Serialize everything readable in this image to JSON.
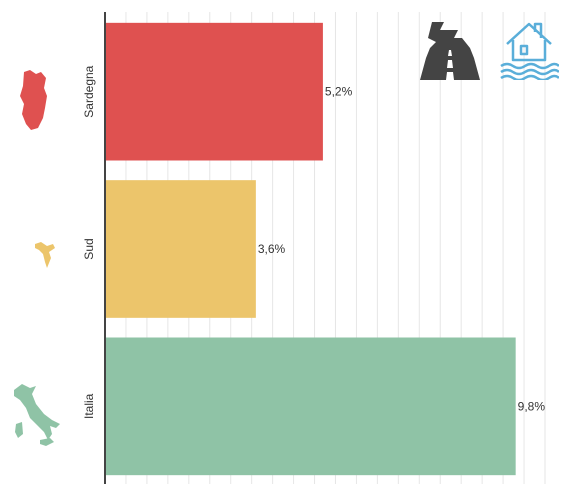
{
  "chart_data": {
    "type": "bar",
    "orientation": "horizontal",
    "categories": [
      "Sardegna",
      "Sud",
      "Italia"
    ],
    "values": [
      5.2,
      3.6,
      9.8
    ],
    "value_labels": [
      "5,2%",
      "3,6%",
      "9,8%"
    ],
    "colors": [
      "#df5150",
      "#ecc56b",
      "#8fc3a6"
    ],
    "xlim": [
      0,
      10.5
    ],
    "grid": true,
    "title": "",
    "xlabel": "",
    "ylabel": ""
  },
  "icons": {
    "region_icons": [
      "sardinia-map-icon",
      "south-italy-map-icon",
      "italy-map-icon"
    ],
    "header_icons": [
      "road-icon",
      "flooded-house-icon"
    ],
    "colors": {
      "road": "#444444",
      "house": "#5aaed9"
    }
  }
}
